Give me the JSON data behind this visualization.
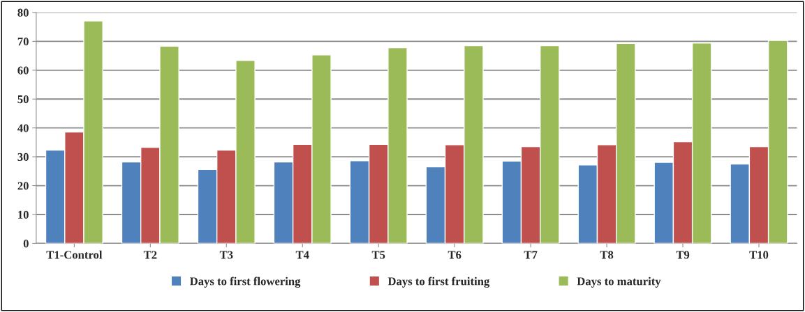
{
  "chart_data": {
    "type": "bar",
    "categories": [
      "T1-Control",
      "T2",
      "T3",
      "T4",
      "T5",
      "T6",
      "T7",
      "T8",
      "T9",
      "T10"
    ],
    "series": [
      {
        "name": "Days to first flowering",
        "color": "#4f81bd",
        "values": [
          32.3,
          28.2,
          25.6,
          28.2,
          28.6,
          26.5,
          28.5,
          27.2,
          28.1,
          27.5
        ]
      },
      {
        "name": "Days to first fruiting",
        "color": "#c0504d",
        "values": [
          38.6,
          33.3,
          32.3,
          34.3,
          34.3,
          34.2,
          33.5,
          34.2,
          35.2,
          33.5
        ]
      },
      {
        "name": "Days to maturity",
        "color": "#9bbb59",
        "values": [
          77.1,
          68.3,
          63.4,
          65.3,
          67.8,
          68.5,
          68.5,
          69.3,
          69.4,
          70.3
        ]
      }
    ],
    "ylim": [
      0,
      80
    ],
    "yticks": [
      0,
      10,
      20,
      30,
      40,
      50,
      60,
      70,
      80
    ],
    "grid": "y",
    "legend": "bottom"
  }
}
